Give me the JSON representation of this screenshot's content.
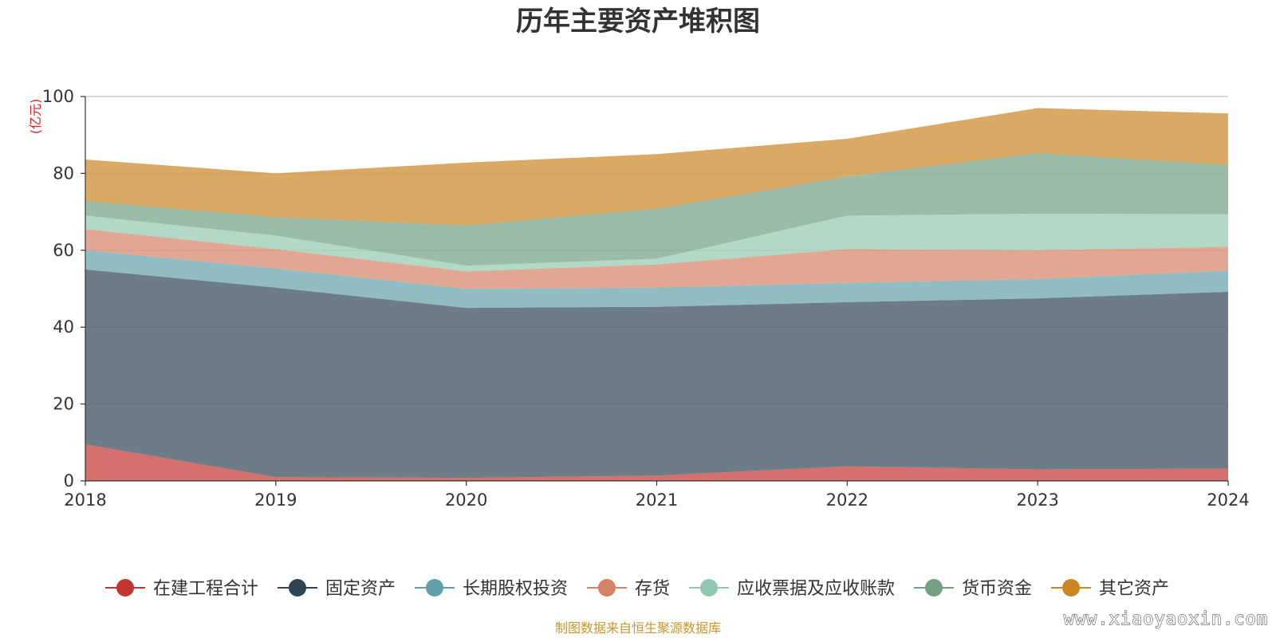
{
  "chart_data": {
    "type": "area",
    "stacked": true,
    "title": "历年主要资产堆积图",
    "unit_label": "(亿元)",
    "x": [
      "2018",
      "2019",
      "2020",
      "2021",
      "2022",
      "2023",
      "2024"
    ],
    "ylim": [
      0,
      100
    ],
    "yticks": [
      0,
      20,
      40,
      60,
      80,
      100
    ],
    "grid": true,
    "legend_position": "bottom",
    "series": [
      {
        "name": "在建工程合计",
        "color": "#c23531",
        "values": [
          9.5,
          1.0,
          0.8,
          1.4,
          3.8,
          3.0,
          3.2
        ]
      },
      {
        "name": "固定资产",
        "color": "#2f4554",
        "values": [
          45.5,
          49.3,
          44.2,
          43.9,
          42.7,
          44.5,
          46.0
        ]
      },
      {
        "name": "长期股权投资",
        "color": "#61a0a8",
        "values": [
          5.0,
          5.0,
          5.0,
          5.0,
          5.0,
          5.0,
          5.5
        ]
      },
      {
        "name": "存货",
        "color": "#d48265",
        "values": [
          5.5,
          5.0,
          4.5,
          6.0,
          8.8,
          7.5,
          6.2
        ]
      },
      {
        "name": "应收票据及应收账款",
        "color": "#91c7ae",
        "values": [
          3.5,
          3.5,
          1.5,
          1.5,
          8.7,
          9.5,
          8.5
        ]
      },
      {
        "name": "货币资金",
        "color": "#749f83",
        "values": [
          3.8,
          4.8,
          10.5,
          13.0,
          10.2,
          15.8,
          12.8
        ]
      },
      {
        "name": "其它资产",
        "color": "#ca8622",
        "values": [
          10.8,
          11.4,
          16.3,
          14.2,
          9.8,
          11.7,
          13.4
        ]
      }
    ]
  },
  "source_text": "制图数据来自恒生聚源数据库",
  "watermark_text": "www.xiaoyaoxin.com"
}
